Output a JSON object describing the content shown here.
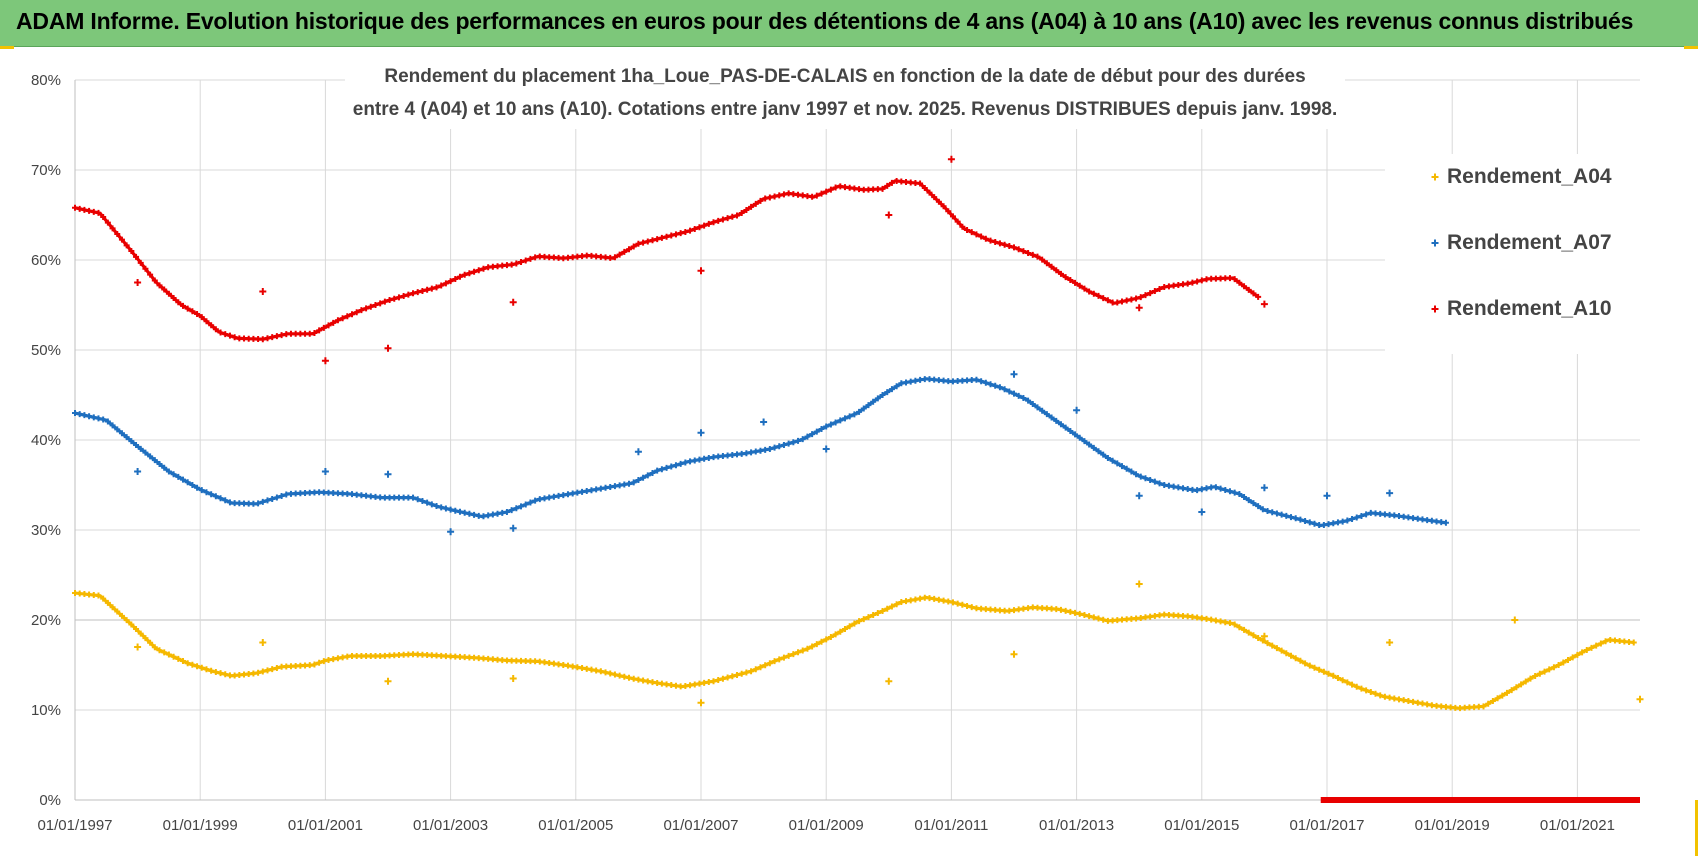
{
  "header": {
    "title": "ADAM Informe. Evolution historique des performances en euros pour des détentions de 4 ans (A04) à 10 ans (A10) avec les revenus connus distribués"
  },
  "colors": {
    "banner": "#7dc77a",
    "a04": "#f5b800",
    "a07": "#1f6fbf",
    "a10": "#e80000",
    "grid": "#d9d9d9",
    "accent": "#f2c200"
  },
  "chart_data": {
    "type": "scatter",
    "title_lines": [
      "Rendement du placement 1ha_Loue_PAS-DE-CALAIS en fonction de la date de début pour des durées",
      "entre 4 (A04) et 10 ans (A10). Cotations entre janv 1997 et nov. 2025. Revenus DISTRIBUES depuis janv. 1998."
    ],
    "xlabel": "",
    "ylabel": "",
    "x_range": [
      1997.0,
      2022.0
    ],
    "ylim": [
      0,
      80
    ],
    "y_ticks": [
      "0%",
      "10%",
      "20%",
      "30%",
      "40%",
      "50%",
      "60%",
      "70%",
      "80%"
    ],
    "x_ticks": [
      {
        "x": 1997,
        "label": "01/01/1997"
      },
      {
        "x": 1999,
        "label": "01/01/1999"
      },
      {
        "x": 2001,
        "label": "01/01/2001"
      },
      {
        "x": 2003,
        "label": "01/01/2003"
      },
      {
        "x": 2005,
        "label": "01/01/2005"
      },
      {
        "x": 2007,
        "label": "01/01/2007"
      },
      {
        "x": 2009,
        "label": "01/01/2009"
      },
      {
        "x": 2011,
        "label": "01/01/2011"
      },
      {
        "x": 2013,
        "label": "01/01/2013"
      },
      {
        "x": 2015,
        "label": "01/01/2015"
      },
      {
        "x": 2017,
        "label": "01/01/2017"
      },
      {
        "x": 2019,
        "label": "01/01/2019"
      },
      {
        "x": 2021,
        "label": "01/01/2021"
      }
    ],
    "legend_position": "top-right",
    "series": [
      {
        "name": "Rendement_A04",
        "x": [
          1997.0,
          1997.4,
          1997.9,
          1998.3,
          1998.8,
          1999.2,
          1999.5,
          1999.9,
          2000.3,
          2000.8,
          2001.0,
          2001.4,
          2001.9,
          2002.4,
          2002.9,
          2003.4,
          2003.9,
          2004.4,
          2004.9,
          2005.4,
          2005.9,
          2006.3,
          2006.7,
          2007.2,
          2007.8,
          2008.2,
          2008.7,
          2009.1,
          2009.5,
          2009.9,
          2010.2,
          2010.6,
          2011.0,
          2011.4,
          2011.9,
          2012.3,
          2012.7,
          2013.1,
          2013.5,
          2014.0,
          2014.4,
          2014.8,
          2015.1,
          2015.5,
          2015.9,
          2016.3,
          2016.7,
          2017.1,
          2017.5,
          2017.9,
          2018.3,
          2018.7,
          2019.1,
          2019.5,
          2019.9,
          2020.3,
          2020.7,
          2021.1,
          2021.5,
          2021.9
        ],
        "values": [
          23.0,
          22.7,
          19.5,
          16.8,
          15.2,
          14.3,
          13.8,
          14.1,
          14.8,
          15.0,
          15.5,
          16.0,
          16.0,
          16.2,
          16.0,
          15.8,
          15.5,
          15.4,
          14.9,
          14.3,
          13.5,
          13.0,
          12.6,
          13.2,
          14.3,
          15.5,
          16.8,
          18.2,
          19.8,
          21.0,
          22.0,
          22.5,
          22.0,
          21.3,
          21.0,
          21.4,
          21.2,
          20.6,
          19.9,
          20.2,
          20.6,
          20.4,
          20.1,
          19.6,
          18.0,
          16.5,
          15.0,
          13.8,
          12.5,
          11.5,
          11.0,
          10.5,
          10.2,
          10.4,
          12.0,
          13.7,
          15.0,
          16.5,
          17.8,
          17.5
        ],
        "outliers": {
          "x": [
            1998.0,
            2000.0,
            2002.0,
            2004.0,
            2007.0,
            2010.0,
            2012.0,
            2014.0,
            2016.0,
            2018.0,
            2020.0,
            2022.0
          ],
          "values": [
            17.0,
            17.5,
            13.2,
            13.5,
            10.8,
            13.2,
            16.2,
            24.0,
            18.2,
            17.5,
            20.0,
            11.2
          ]
        }
      },
      {
        "name": "Rendement_A07",
        "x": [
          1997.0,
          1997.5,
          1998.0,
          1998.5,
          1999.0,
          1999.5,
          1999.9,
          2000.4,
          2000.9,
          2001.4,
          2001.9,
          2002.4,
          2002.8,
          2003.1,
          2003.5,
          2003.9,
          2004.4,
          2004.9,
          2005.4,
          2005.9,
          2006.3,
          2006.8,
          2007.2,
          2007.7,
          2008.1,
          2008.6,
          2009.0,
          2009.5,
          2009.9,
          2010.2,
          2010.6,
          2011.0,
          2011.4,
          2011.8,
          2012.2,
          2012.6,
          2013.0,
          2013.5,
          2014.0,
          2014.4,
          2014.9,
          2015.2,
          2015.6,
          2016.0,
          2016.5,
          2016.9,
          2017.3,
          2017.7,
          2018.1,
          2018.5,
          2018.9
        ],
        "values": [
          43.0,
          42.2,
          39.3,
          36.5,
          34.5,
          33.0,
          32.9,
          34.0,
          34.2,
          34.0,
          33.6,
          33.6,
          32.6,
          32.1,
          31.5,
          32.0,
          33.4,
          34.0,
          34.6,
          35.2,
          36.6,
          37.6,
          38.1,
          38.5,
          39.0,
          40.0,
          41.5,
          43.0,
          45.0,
          46.3,
          46.8,
          46.5,
          46.7,
          45.8,
          44.5,
          42.5,
          40.5,
          38.0,
          36.0,
          35.0,
          34.4,
          34.8,
          34.0,
          32.2,
          31.3,
          30.5,
          31.0,
          31.9,
          31.6,
          31.2,
          30.8
        ],
        "outliers": {
          "x": [
            1998.0,
            2001.0,
            2002.0,
            2003.0,
            2004.0,
            2006.0,
            2007.0,
            2008.0,
            2009.0,
            2012.0,
            2013.0,
            2014.0,
            2015.0,
            2016.0,
            2017.0,
            2018.0
          ],
          "values": [
            36.5,
            36.5,
            36.2,
            29.8,
            30.2,
            38.7,
            40.8,
            42.0,
            39.0,
            47.3,
            43.3,
            33.8,
            32.0,
            34.7,
            33.8,
            34.1
          ]
        }
      },
      {
        "name": "Rendement_A10",
        "x": [
          1997.0,
          1997.4,
          1997.9,
          1998.3,
          1998.7,
          1999.0,
          1999.3,
          1999.6,
          2000.0,
          2000.4,
          2000.8,
          2001.2,
          2001.6,
          2002.0,
          2002.4,
          2002.8,
          2003.2,
          2003.6,
          2004.0,
          2004.4,
          2004.8,
          2005.2,
          2005.6,
          2006.0,
          2006.4,
          2006.8,
          2007.2,
          2007.6,
          2008.0,
          2008.4,
          2008.8,
          2009.2,
          2009.6,
          2009.9,
          2010.1,
          2010.5,
          2010.9,
          2011.2,
          2011.6,
          2012.0,
          2012.4,
          2012.8,
          2013.2,
          2013.6,
          2014.0,
          2014.4,
          2014.8,
          2015.1,
          2015.5,
          2015.9
        ],
        "values": [
          65.8,
          65.2,
          61.0,
          57.5,
          55.0,
          53.8,
          52.0,
          51.3,
          51.2,
          51.8,
          51.8,
          53.3,
          54.5,
          55.5,
          56.3,
          57.0,
          58.3,
          59.2,
          59.5,
          60.4,
          60.2,
          60.5,
          60.2,
          61.8,
          62.5,
          63.2,
          64.2,
          65.0,
          66.8,
          67.4,
          67.0,
          68.2,
          67.8,
          67.9,
          68.8,
          68.5,
          65.8,
          63.5,
          62.2,
          61.4,
          60.3,
          58.2,
          56.5,
          55.2,
          55.8,
          57.0,
          57.4,
          57.9,
          58.0,
          55.9
        ],
        "outliers": {
          "x": [
            1998.0,
            2000.0,
            2001.0,
            2002.0,
            2004.0,
            2007.0,
            2010.0,
            2011.0,
            2014.0,
            2016.0
          ],
          "values": [
            57.5,
            56.5,
            48.8,
            50.2,
            55.3,
            58.8,
            65.0,
            71.2,
            54.7,
            55.1
          ]
        },
        "zero_segment": {
          "x_start": 2016.9,
          "x_end": 2022.0,
          "value": 0
        }
      }
    ]
  }
}
